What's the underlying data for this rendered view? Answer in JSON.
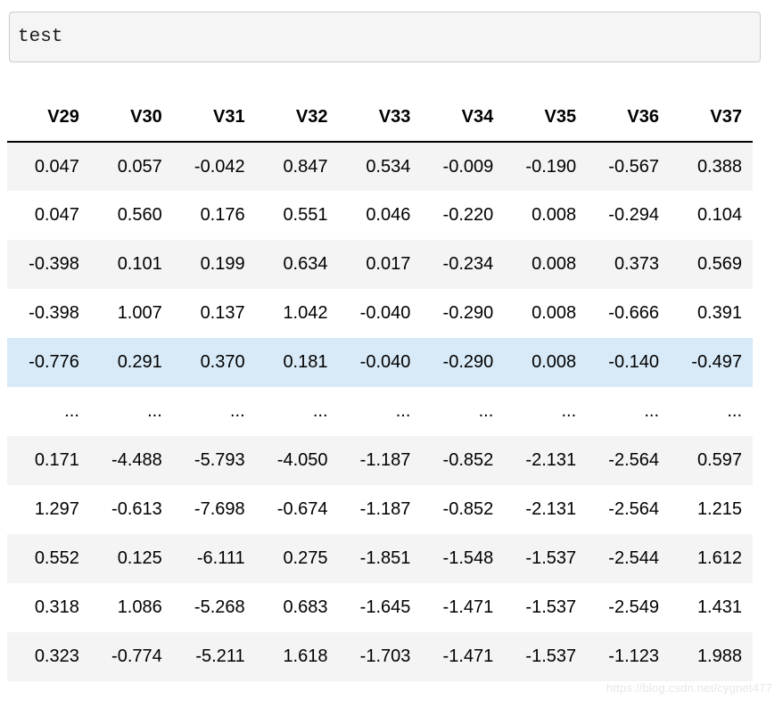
{
  "output": {
    "text": "test"
  },
  "table": {
    "columns": [
      "V29",
      "V30",
      "V31",
      "V32",
      "V33",
      "V34",
      "V35",
      "V36",
      "V37"
    ],
    "rows": [
      {
        "variant": "striped",
        "cells": [
          "0.047",
          "0.057",
          "-0.042",
          "0.847",
          "0.534",
          "-0.009",
          "-0.190",
          "-0.567",
          "0.388"
        ]
      },
      {
        "variant": "plain",
        "cells": [
          "0.047",
          "0.560",
          "0.176",
          "0.551",
          "0.046",
          "-0.220",
          "0.008",
          "-0.294",
          "0.104"
        ]
      },
      {
        "variant": "striped",
        "cells": [
          "-0.398",
          "0.101",
          "0.199",
          "0.634",
          "0.017",
          "-0.234",
          "0.008",
          "0.373",
          "0.569"
        ]
      },
      {
        "variant": "plain",
        "cells": [
          "-0.398",
          "1.007",
          "0.137",
          "1.042",
          "-0.040",
          "-0.290",
          "0.008",
          "-0.666",
          "0.391"
        ]
      },
      {
        "variant": "highlighted",
        "cells": [
          "-0.776",
          "0.291",
          "0.370",
          "0.181",
          "-0.040",
          "-0.290",
          "0.008",
          "-0.140",
          "-0.497"
        ]
      },
      {
        "variant": "ellipsis",
        "cells": [
          "...",
          "...",
          "...",
          "...",
          "...",
          "...",
          "...",
          "...",
          "..."
        ]
      },
      {
        "variant": "striped",
        "cells": [
          "0.171",
          "-4.488",
          "-5.793",
          "-4.050",
          "-1.187",
          "-0.852",
          "-2.131",
          "-2.564",
          "0.597"
        ]
      },
      {
        "variant": "plain",
        "cells": [
          "1.297",
          "-0.613",
          "-7.698",
          "-0.674",
          "-1.187",
          "-0.852",
          "-2.131",
          "-2.564",
          "1.215"
        ]
      },
      {
        "variant": "striped",
        "cells": [
          "0.552",
          "0.125",
          "-6.111",
          "0.275",
          "-1.851",
          "-1.548",
          "-1.537",
          "-2.544",
          "1.612"
        ]
      },
      {
        "variant": "plain",
        "cells": [
          "0.318",
          "1.086",
          "-5.268",
          "0.683",
          "-1.645",
          "-1.471",
          "-1.537",
          "-2.549",
          "1.431"
        ]
      },
      {
        "variant": "striped",
        "cells": [
          "0.323",
          "-0.774",
          "-5.211",
          "1.618",
          "-1.703",
          "-1.471",
          "-1.537",
          "-1.123",
          "1.988"
        ]
      }
    ]
  },
  "watermark": {
    "text": "https://blog.csdn.net/cygnet477"
  },
  "colors": {
    "stripe_bg": "#f4f4f4",
    "highlight_bg": "#d8eaf8",
    "header_border": "#000000",
    "input_bg": "#f5f5f5",
    "input_border": "#cccccc",
    "watermark": "#e7e7e7"
  }
}
